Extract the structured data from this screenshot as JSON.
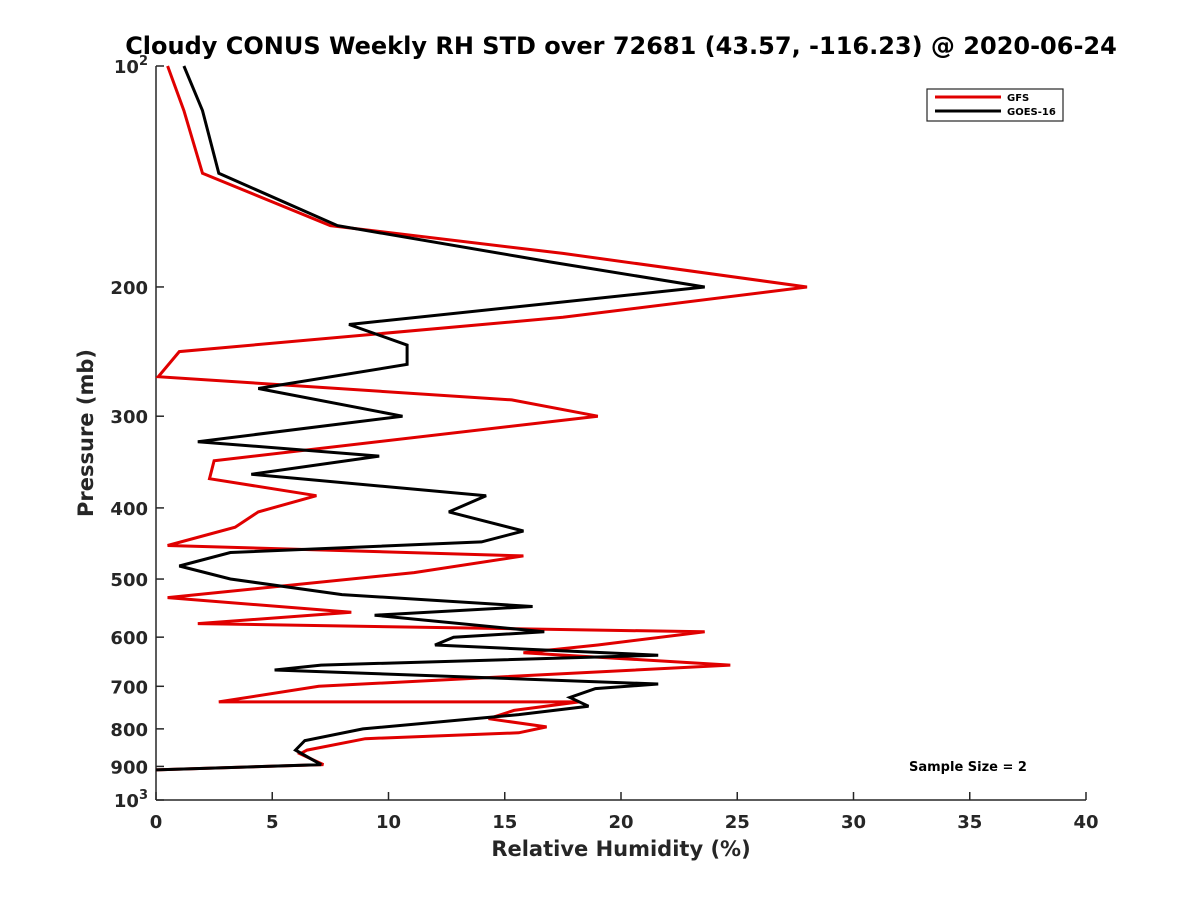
{
  "chart_data": {
    "type": "line",
    "title": "Cloudy CONUS Weekly RH STD over 72681 (43.57, -116.23) @ 2020-06-24",
    "xlabel": "Relative Humidity (%)",
    "ylabel": "Pressure (mb)",
    "xlim": [
      0,
      40
    ],
    "ylim": [
      100,
      1000
    ],
    "yscale": "log",
    "y_reversed": true,
    "grid": false,
    "legend_position": "top-right",
    "x_ticks": [
      "0",
      "5",
      "10",
      "15",
      "20",
      "25",
      "30",
      "35",
      "40"
    ],
    "y_ticks": [
      {
        "value": 100,
        "base": "10",
        "exp": "2"
      },
      {
        "value": 200,
        "label": "200"
      },
      {
        "value": 300,
        "label": "300"
      },
      {
        "value": 400,
        "label": "400"
      },
      {
        "value": 500,
        "label": "500"
      },
      {
        "value": 600,
        "label": "600"
      },
      {
        "value": 700,
        "label": "700"
      },
      {
        "value": 800,
        "label": "800"
      },
      {
        "value": 900,
        "label": "900"
      },
      {
        "value": 1000,
        "base": "10",
        "exp": "3"
      }
    ],
    "annotation": "Sample Size = 2",
    "series": [
      {
        "name": "GFS",
        "color": "#e00000",
        "x": [
          0.5,
          1.2,
          2.0,
          7.5,
          17.5,
          28.0,
          17.5,
          1.0,
          0.1,
          15.3,
          19.0,
          2.5,
          2.3,
          6.9,
          4.4,
          3.4,
          0.5,
          15.8,
          11.1,
          0.5,
          8.4,
          1.8,
          23.6,
          19.0,
          15.8,
          24.7,
          7.0,
          2.7,
          18.2,
          15.4,
          14.3,
          16.8,
          15.6,
          9.0,
          6.5,
          6.2,
          7.2,
          0.0
        ],
        "y": [
          100,
          115,
          140,
          165,
          180,
          200,
          220,
          245,
          265,
          285,
          300,
          345,
          365,
          385,
          405,
          425,
          450,
          465,
          490,
          530,
          555,
          575,
          590,
          615,
          630,
          655,
          700,
          735,
          735,
          755,
          775,
          795,
          810,
          825,
          855,
          865,
          895,
          910
        ]
      },
      {
        "name": "GOES-16",
        "color": "#000000",
        "x": [
          1.2,
          2.0,
          2.7,
          7.8,
          17.0,
          23.6,
          8.3,
          10.8,
          10.8,
          4.4,
          10.6,
          1.8,
          9.6,
          4.1,
          14.2,
          12.6,
          15.8,
          14.0,
          3.2,
          1.0,
          3.2,
          8.0,
          16.2,
          9.4,
          16.7,
          12.8,
          12.0,
          21.6,
          7.1,
          5.1,
          21.6,
          18.9,
          17.8,
          18.6,
          15.6,
          8.9,
          6.4,
          6.0,
          7.1,
          0.0
        ],
        "y": [
          100,
          115,
          140,
          165,
          185,
          200,
          225,
          240,
          255,
          275,
          300,
          325,
          340,
          360,
          385,
          405,
          430,
          445,
          460,
          480,
          500,
          525,
          545,
          560,
          590,
          600,
          615,
          635,
          655,
          665,
          695,
          705,
          725,
          745,
          765,
          800,
          830,
          855,
          895,
          910
        ]
      }
    ]
  }
}
